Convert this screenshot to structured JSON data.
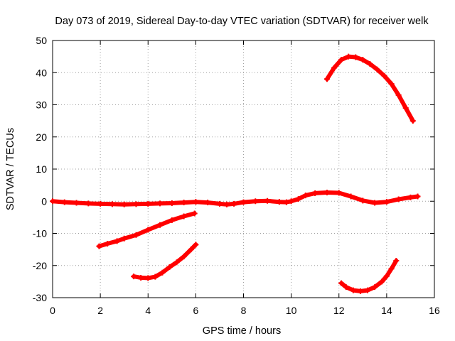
{
  "chart_data": {
    "type": "scatter",
    "title": "Day 073 of 2019, Sidereal Day-to-day VTEC variation (SDTVAR) for receiver welk",
    "xlabel": "GPS time / hours",
    "ylabel": "SDTVAR / TECUs",
    "xlim": [
      0,
      16
    ],
    "ylim": [
      -30,
      50
    ],
    "x_ticks": [
      0,
      2,
      4,
      6,
      8,
      10,
      12,
      14,
      16
    ],
    "y_ticks": [
      -30,
      -20,
      -10,
      0,
      10,
      20,
      30,
      40,
      50
    ],
    "x_tick_labels": [
      "0",
      "2",
      "4",
      "6",
      "8",
      "10",
      "12",
      "14",
      "16"
    ],
    "y_tick_labels": [
      "-30",
      "-20",
      "-10",
      "0",
      "10",
      "20",
      "30",
      "40",
      "50"
    ],
    "grid": true,
    "grid_style": "dotted",
    "marker_color": "#ff0000",
    "marker": "plus",
    "series": [
      {
        "points": [
          [
            0,
            0
          ],
          [
            0.5,
            -0.3
          ],
          [
            1,
            -0.5
          ],
          [
            1.5,
            -0.7
          ],
          [
            2,
            -0.8
          ],
          [
            2.5,
            -0.9
          ],
          [
            3,
            -1
          ],
          [
            3.5,
            -0.9
          ],
          [
            4,
            -0.8
          ],
          [
            4.5,
            -0.7
          ],
          [
            5,
            -0.6
          ],
          [
            5.5,
            -0.4
          ],
          [
            6,
            -0.2
          ],
          [
            6.5,
            -0.4
          ],
          [
            7,
            -0.8
          ],
          [
            7.3,
            -1
          ],
          [
            7.6,
            -0.8
          ],
          [
            8,
            -0.3
          ],
          [
            8.5,
            0
          ],
          [
            9,
            0.1
          ],
          [
            9.5,
            -0.2
          ],
          [
            9.8,
            -0.3
          ],
          [
            10,
            0
          ],
          [
            10.3,
            0.7
          ],
          [
            10.6,
            1.8
          ],
          [
            11,
            2.5
          ],
          [
            11.5,
            2.7
          ],
          [
            12,
            2.6
          ],
          [
            12.5,
            1.5
          ],
          [
            13,
            0.2
          ],
          [
            13.5,
            -0.5
          ],
          [
            14,
            -0.2
          ],
          [
            14.5,
            0.6
          ],
          [
            15,
            1.2
          ],
          [
            15.3,
            1.5
          ]
        ]
      },
      {
        "points": [
          [
            11.5,
            38
          ],
          [
            11.8,
            41.5
          ],
          [
            12.1,
            44
          ],
          [
            12.4,
            45
          ],
          [
            12.7,
            44.8
          ],
          [
            13,
            44
          ],
          [
            13.3,
            42.7
          ],
          [
            13.6,
            41
          ],
          [
            13.9,
            39
          ],
          [
            14.2,
            36.5
          ],
          [
            14.5,
            33
          ],
          [
            14.8,
            29
          ],
          [
            15.1,
            25
          ]
        ]
      },
      {
        "points": [
          [
            1.95,
            -14
          ],
          [
            2.3,
            -13.2
          ],
          [
            2.7,
            -12.4
          ],
          [
            3,
            -11.6
          ],
          [
            3.5,
            -10.5
          ],
          [
            4,
            -8.9
          ],
          [
            4.5,
            -7.4
          ],
          [
            5,
            -5.9
          ],
          [
            5.5,
            -4.7
          ],
          [
            5.95,
            -3.8
          ]
        ]
      },
      {
        "points": [
          [
            3.4,
            -23.4
          ],
          [
            3.7,
            -23.8
          ],
          [
            4,
            -23.9
          ],
          [
            4.3,
            -23.5
          ],
          [
            4.6,
            -22.2
          ],
          [
            4.9,
            -20.5
          ],
          [
            5.2,
            -19
          ],
          [
            5.5,
            -17.2
          ],
          [
            5.8,
            -15
          ],
          [
            6,
            -13.5
          ]
        ]
      },
      {
        "points": [
          [
            12.1,
            -25.5
          ],
          [
            12.3,
            -26.7
          ],
          [
            12.6,
            -27.7
          ],
          [
            12.9,
            -28
          ],
          [
            13.2,
            -27.7
          ],
          [
            13.5,
            -26.7
          ],
          [
            13.8,
            -25
          ],
          [
            14.0,
            -23.3
          ],
          [
            14.2,
            -21
          ],
          [
            14.4,
            -18.5
          ]
        ]
      }
    ]
  }
}
